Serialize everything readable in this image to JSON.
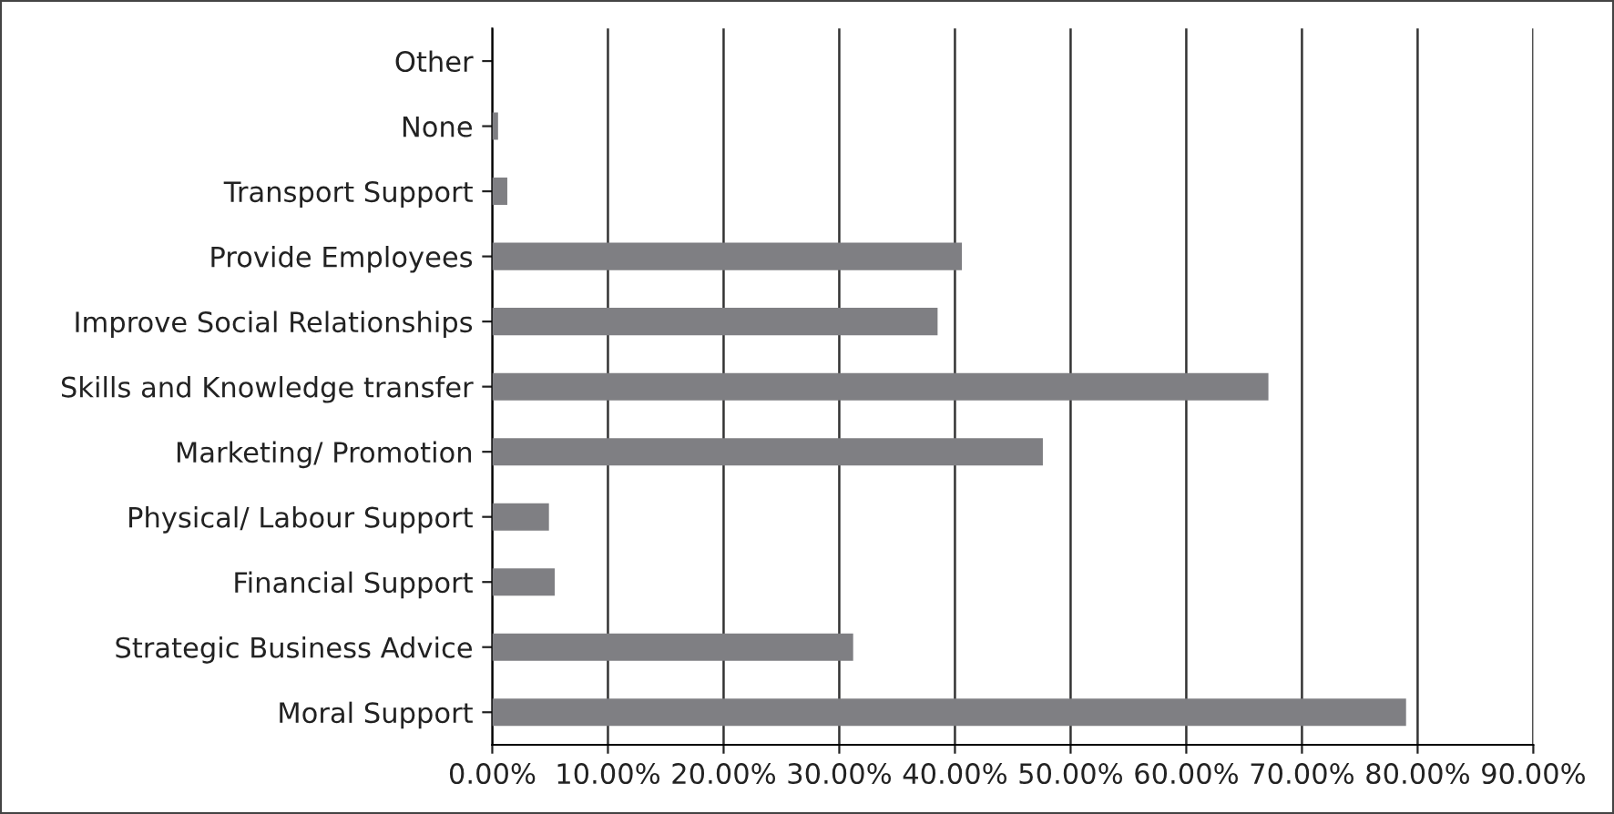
{
  "chart_data": {
    "type": "bar",
    "orientation": "horizontal",
    "categories": [
      "Other",
      "None",
      "Transport Support",
      "Provide Employees",
      "Improve Social Relationships",
      "Skills and Knowledge transfer",
      "Marketing/ Promotion",
      "Physical/ Labour Support",
      "Financial Support",
      "Strategic Business Advice",
      "Moral Support"
    ],
    "values": [
      0,
      0.5,
      1.3,
      40.6,
      38.5,
      67.1,
      47.6,
      4.9,
      5.4,
      31.2,
      79.0
    ],
    "color": "#7f7f83",
    "xlim": [
      0,
      90
    ],
    "xticks": [
      {
        "value": 0,
        "label": "0.00%"
      },
      {
        "value": 10,
        "label": "10.00%"
      },
      {
        "value": 20,
        "label": "20.00%"
      },
      {
        "value": 30,
        "label": "30.00%"
      },
      {
        "value": 40,
        "label": "40.00%"
      },
      {
        "value": 50,
        "label": "50.00%"
      },
      {
        "value": 60,
        "label": "60.00%"
      },
      {
        "value": 70,
        "label": "70.00%"
      },
      {
        "value": 80,
        "label": "80.00%"
      },
      {
        "value": 90,
        "label": "90.00%"
      }
    ],
    "grid": "x",
    "legend": false
  }
}
